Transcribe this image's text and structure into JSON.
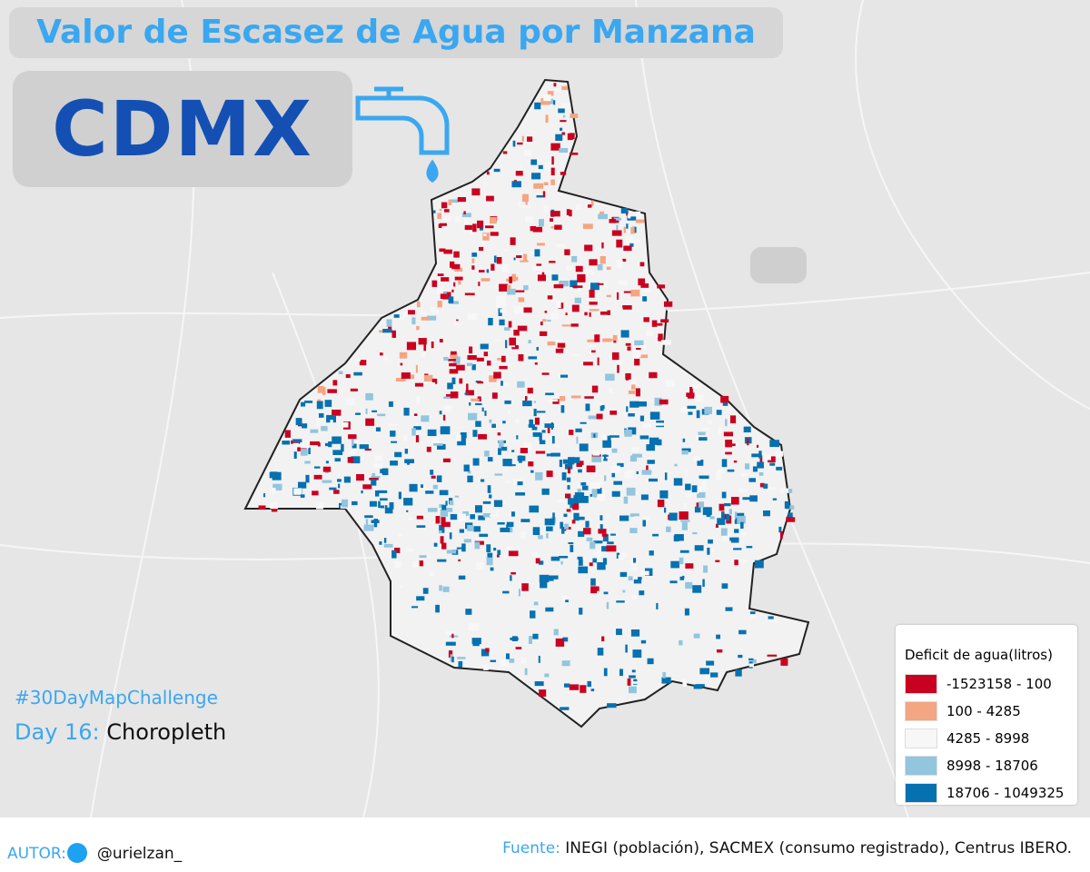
{
  "header": {
    "title": "Valor de Escasez de Agua por Manzana",
    "badge": "CDMX"
  },
  "challenge": {
    "tag": "#30DayMapChallenge",
    "day": "Day 16:",
    "theme": "Choropleth"
  },
  "legend": {
    "title": "Deficit de agua(litros)",
    "items": [
      {
        "label": "-1523158 - 100",
        "color": "#ca0020"
      },
      {
        "label": "100 - 4285",
        "color": "#f4a582"
      },
      {
        "label": "4285 - 8998",
        "color": "#f7f7f7"
      },
      {
        "label": "8998 - 18706",
        "color": "#92c5de"
      },
      {
        "label": "18706 - 1049325",
        "color": "#0571b0"
      }
    ]
  },
  "footer": {
    "author_label": "AUTOR:",
    "author": "@urielzan_",
    "source_label": "Fuente:",
    "source": "INEGI (población), SACMEX (consumo registrado), Centrus IBERO."
  }
}
